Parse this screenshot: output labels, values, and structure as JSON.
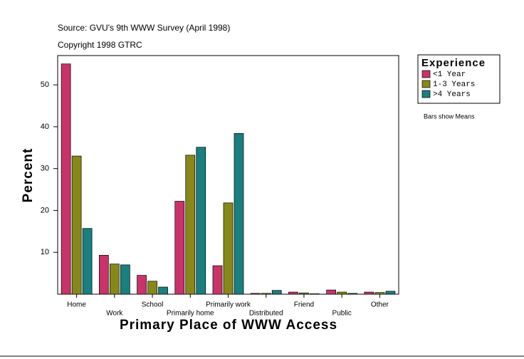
{
  "chart_data": {
    "type": "bar",
    "title": "Source: GVU's 9th WWW Survey (April 1998)",
    "subtitle": "Copyright 1998 GTRC",
    "x_label": "Primary Place of WWW Access",
    "y_label": "Percent",
    "note": "Bars show Means",
    "legend_title": "Experience",
    "categories": [
      "Home",
      "Work",
      "School",
      "Primarily home",
      "Primarily work",
      "Distributed",
      "Friend",
      "Public",
      "Other"
    ],
    "series": [
      {
        "name": "<1 Year",
        "color": "#c8336a",
        "values": [
          55,
          9.3,
          4.5,
          22.2,
          6.8,
          0.2,
          0.5,
          1.0,
          0.5
        ]
      },
      {
        "name": "1-3 Years",
        "color": "#88881a",
        "values": [
          33,
          7.2,
          3.1,
          33.2,
          21.8,
          0.2,
          0.3,
          0.5,
          0.4
        ]
      },
      {
        "name": ">4 Years",
        "color": "#1a7f7f",
        "values": [
          15.7,
          7.0,
          1.7,
          35.1,
          38.4,
          0.9,
          0.1,
          0.2,
          0.7
        ]
      }
    ],
    "ylim": [
      0,
      57
    ],
    "yticks": [
      10,
      20,
      30,
      40,
      50
    ],
    "legend_position": "right"
  }
}
